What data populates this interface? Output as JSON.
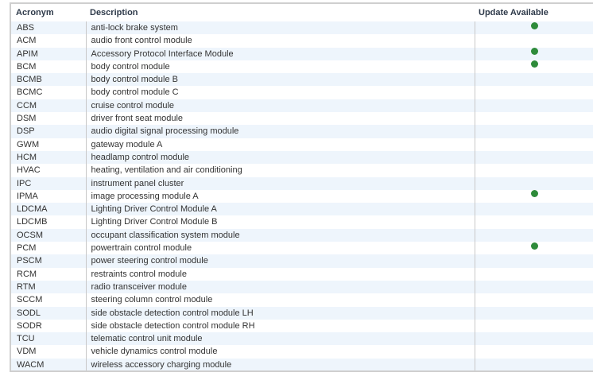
{
  "table": {
    "headers": {
      "acronym": "Acronym",
      "description": "Description",
      "update": "Update Available"
    },
    "colors": {
      "update_dot": "#2e8b3a",
      "row_stripe": "#eef5fc"
    },
    "rows": [
      {
        "acronym": "ABS",
        "description": "anti-lock brake system",
        "update": true
      },
      {
        "acronym": "ACM",
        "description": "audio front control module",
        "update": false
      },
      {
        "acronym": "APIM",
        "description": "Accessory Protocol Interface Module",
        "update": true
      },
      {
        "acronym": "BCM",
        "description": "body control module",
        "update": true
      },
      {
        "acronym": "BCMB",
        "description": "body control module B",
        "update": false
      },
      {
        "acronym": "BCMC",
        "description": "body control module C",
        "update": false
      },
      {
        "acronym": "CCM",
        "description": "cruise control module",
        "update": false
      },
      {
        "acronym": "DSM",
        "description": "driver front seat module",
        "update": false
      },
      {
        "acronym": "DSP",
        "description": "audio digital signal processing module",
        "update": false
      },
      {
        "acronym": "GWM",
        "description": "gateway module A",
        "update": false
      },
      {
        "acronym": "HCM",
        "description": "headlamp control module",
        "update": false
      },
      {
        "acronym": "HVAC",
        "description": "heating, ventilation and air conditioning",
        "update": false
      },
      {
        "acronym": "IPC",
        "description": "instrument panel cluster",
        "update": false
      },
      {
        "acronym": "IPMA",
        "description": "image processing module A",
        "update": true
      },
      {
        "acronym": "LDCMA",
        "description": "Lighting Driver Control Module A",
        "update": false
      },
      {
        "acronym": "LDCMB",
        "description": "Lighting Driver Control Module B",
        "update": false
      },
      {
        "acronym": "OCSM",
        "description": "occupant classification system module",
        "update": false
      },
      {
        "acronym": "PCM",
        "description": "powertrain control module",
        "update": true
      },
      {
        "acronym": "PSCM",
        "description": "power steering control module",
        "update": false
      },
      {
        "acronym": "RCM",
        "description": "restraints control module",
        "update": false
      },
      {
        "acronym": "RTM",
        "description": "radio transceiver module",
        "update": false
      },
      {
        "acronym": "SCCM",
        "description": "steering column control module",
        "update": false
      },
      {
        "acronym": "SODL",
        "description": "side obstacle detection control module LH",
        "update": false
      },
      {
        "acronym": "SODR",
        "description": "side obstacle detection control module RH",
        "update": false
      },
      {
        "acronym": "TCU",
        "description": "telematic control unit module",
        "update": false
      },
      {
        "acronym": "VDM",
        "description": "vehicle dynamics control module",
        "update": false
      },
      {
        "acronym": "WACM",
        "description": "wireless accessory charging module",
        "update": false
      }
    ]
  }
}
